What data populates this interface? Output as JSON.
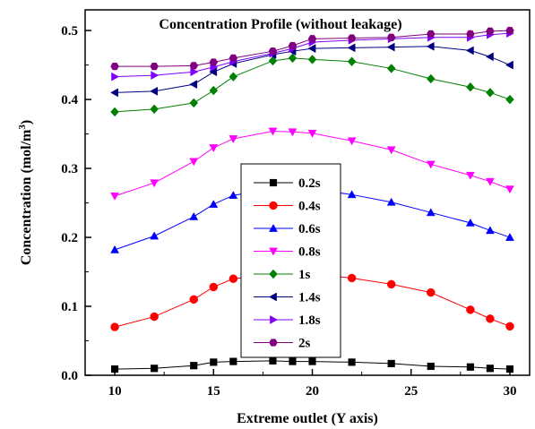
{
  "chart_data": {
    "type": "line",
    "title": "Concentration Profile (without leakage)",
    "xlabel": "Extreme outlet (Y axis)",
    "ylabel_main": "Concentration (mol/m",
    "ylabel_sup": "3",
    "ylabel_close": ")",
    "xlim": [
      8.5,
      31
    ],
    "ylim": [
      0.0,
      0.53
    ],
    "xticks": [
      "10",
      "15",
      "20",
      "25",
      "30"
    ],
    "yticks": [
      "0.0",
      "0.1",
      "0.2",
      "0.3",
      "0.4",
      "0.5"
    ],
    "x": [
      10,
      12,
      14,
      15,
      16,
      18,
      19,
      20,
      22,
      24,
      26,
      28,
      29,
      30
    ],
    "legend_position": "center",
    "series": [
      {
        "name": "0.2s",
        "color": "#000000",
        "marker": "square",
        "values": [
          0.009,
          0.01,
          0.014,
          0.019,
          0.02,
          0.021,
          0.02,
          0.02,
          0.019,
          0.017,
          0.013,
          0.012,
          0.01,
          0.009
        ]
      },
      {
        "name": "0.4s",
        "color": "#ff0000",
        "marker": "circle",
        "values": [
          0.07,
          0.085,
          0.11,
          0.128,
          0.14,
          0.146,
          0.148,
          0.147,
          0.141,
          0.132,
          0.12,
          0.095,
          0.082,
          0.071
        ]
      },
      {
        "name": "0.6s",
        "color": "#0000ff",
        "marker": "triangle-up",
        "values": [
          0.182,
          0.202,
          0.23,
          0.248,
          0.261,
          0.27,
          0.27,
          0.27,
          0.262,
          0.251,
          0.236,
          0.221,
          0.21,
          0.2
        ]
      },
      {
        "name": "0.8s",
        "color": "#ff00ff",
        "marker": "triangle-down",
        "values": [
          0.26,
          0.279,
          0.31,
          0.33,
          0.343,
          0.354,
          0.353,
          0.351,
          0.34,
          0.327,
          0.306,
          0.29,
          0.281,
          0.27
        ]
      },
      {
        "name": "1s",
        "color": "#008000",
        "marker": "diamond",
        "values": [
          0.382,
          0.386,
          0.395,
          0.413,
          0.433,
          0.456,
          0.46,
          0.458,
          0.455,
          0.445,
          0.43,
          0.418,
          0.41,
          0.4
        ]
      },
      {
        "name": "1.4s",
        "color": "#000080",
        "marker": "triangle-left",
        "values": [
          0.41,
          0.412,
          0.422,
          0.44,
          0.452,
          0.465,
          0.47,
          0.474,
          0.475,
          0.476,
          0.477,
          0.471,
          0.462,
          0.45
        ]
      },
      {
        "name": "1.8s",
        "color": "#8000ff",
        "marker": "triangle-right",
        "values": [
          0.433,
          0.435,
          0.44,
          0.447,
          0.455,
          0.467,
          0.474,
          0.483,
          0.486,
          0.488,
          0.49,
          0.49,
          0.494,
          0.496
        ]
      },
      {
        "name": "2s",
        "color": "#800080",
        "marker": "hexagon",
        "values": [
          0.448,
          0.448,
          0.449,
          0.454,
          0.46,
          0.47,
          0.478,
          0.488,
          0.489,
          0.49,
          0.495,
          0.495,
          0.499,
          0.5
        ]
      }
    ]
  }
}
